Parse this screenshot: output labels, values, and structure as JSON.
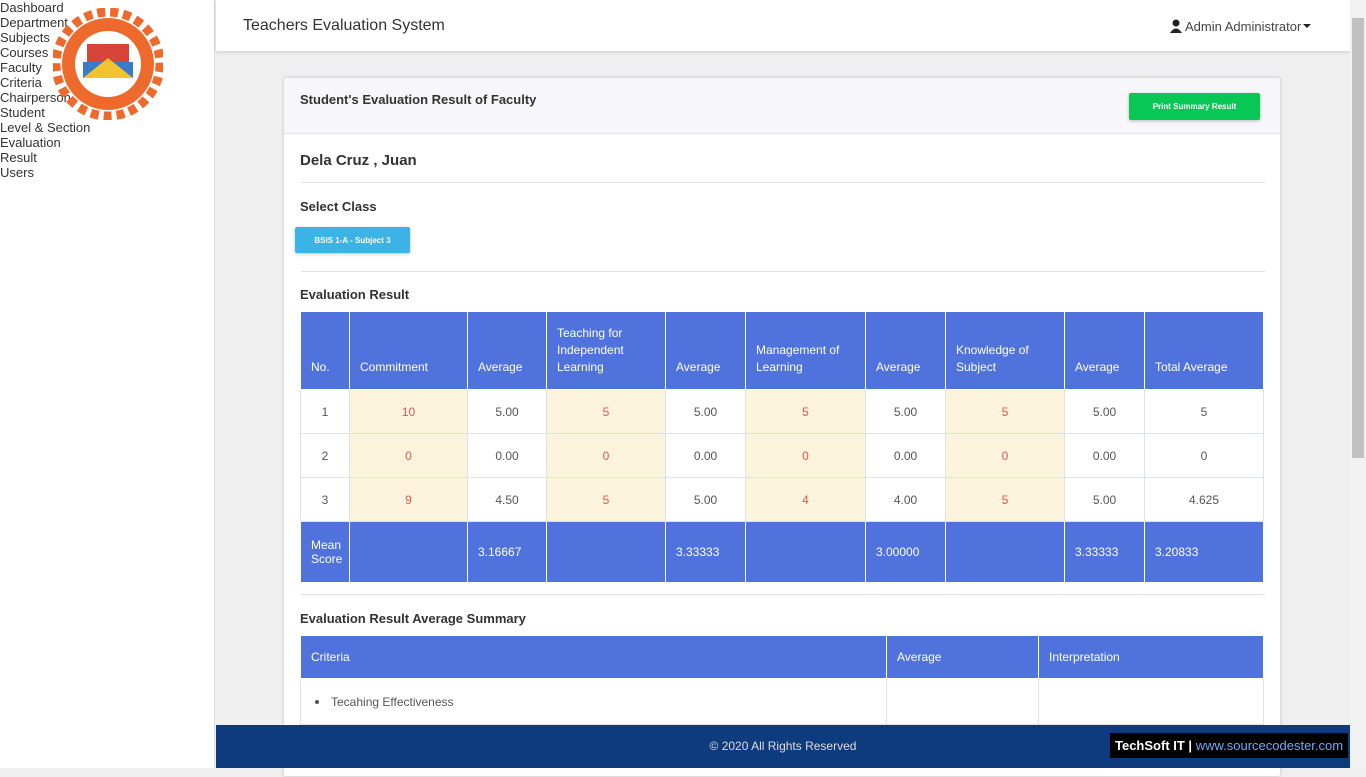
{
  "sidebar": {
    "menu": [
      "Dashboard",
      "Department",
      "Subjects",
      "Courses",
      "Faculty",
      "Criteria",
      "Chairperson",
      "Student",
      "Level & Section",
      "Evaluation",
      "Result",
      "Users"
    ]
  },
  "header": {
    "title": "Teachers Evaluation System",
    "user": "Admin Administrator"
  },
  "card": {
    "title": "Student's Evaluation Result of Faculty",
    "print_button": "Print Summary Result",
    "faculty_name": "Dela Cruz , Juan",
    "select_class_label": "Select Class",
    "class_button": "BSIS 1-A - Subject 3",
    "evaluation_heading": "Evaluation Result",
    "results_table": {
      "columns": [
        "No.",
        "Commitment",
        "Average",
        "Teaching for Independent Learning",
        "Average",
        "Management of Learning",
        "Average",
        "Knowledge of Subject",
        "Average",
        "Total Average"
      ],
      "rows": [
        [
          "1",
          "10",
          "5.00",
          "5",
          "5.00",
          "5",
          "5.00",
          "5",
          "5.00",
          "5"
        ],
        [
          "2",
          "0",
          "0.00",
          "0",
          "0.00",
          "0",
          "0.00",
          "0",
          "0.00",
          "0"
        ],
        [
          "3",
          "9",
          "4.50",
          "5",
          "5.00",
          "4",
          "4.00",
          "5",
          "5.00",
          "4.625"
        ]
      ],
      "mean_row": [
        "Mean Score",
        null,
        "3.16667",
        null,
        "3.33333",
        null,
        "3.00000",
        null,
        "3.33333",
        "3.20833"
      ]
    },
    "summary_heading": "Evaluation Result Average Summary",
    "summary_table": {
      "columns": [
        "Criteria",
        "Average",
        "Interpretation"
      ],
      "rows": [
        [
          "Tecahing Effectiveness"
        ]
      ]
    }
  },
  "footer": {
    "copyright": "© 2020 All Rights Reserved",
    "credit_brand": "TechSoft IT |",
    "credit_url": "www.sourcecodester.com"
  }
}
